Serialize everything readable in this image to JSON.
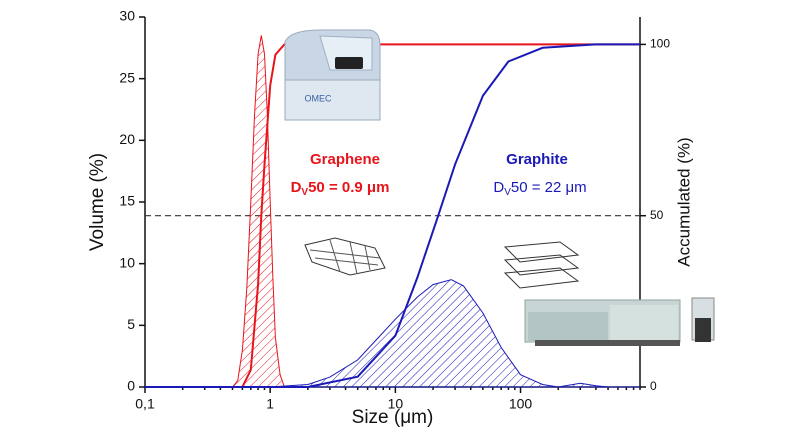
{
  "chart_data": {
    "type": "line",
    "xlabel": "Size (μm)",
    "ylabel": "Volume (%)",
    "y2label": "Accumulated (%)",
    "xscale": "log",
    "xlim": [
      0.1,
      900
    ],
    "xticks": [
      {
        "value": 0.1,
        "label": "0,1"
      },
      1,
      10,
      100
    ],
    "ylim": [
      0,
      30
    ],
    "yticks": [
      0,
      5,
      10,
      15,
      20,
      25,
      30
    ],
    "y2lim": [
      0,
      108
    ],
    "y2ticks": [
      0,
      50,
      100
    ],
    "reference_line": {
      "value": 50,
      "axis": "y2"
    },
    "series": [
      {
        "kind": "hatched-area",
        "color": "#e8141b",
        "axis": "y",
        "x": [
          0.5,
          0.55,
          0.6,
          0.65,
          0.7,
          0.75,
          0.8,
          0.85,
          0.9,
          0.95,
          1.0,
          1.05,
          1.1,
          1.2,
          1.3
        ],
        "values": [
          0,
          0.5,
          3,
          8,
          15,
          22,
          27,
          28.5,
          27,
          22,
          15,
          9,
          4,
          1,
          0
        ]
      },
      {
        "kind": "line",
        "color": "#e8141b",
        "axis": "y2",
        "x": [
          0.1,
          0.6,
          0.7,
          0.8,
          0.85,
          0.9,
          1.0,
          1.1,
          1.3,
          900
        ],
        "values": [
          0,
          0,
          5,
          30,
          50,
          65,
          88,
          97,
          100,
          100
        ]
      },
      {
        "kind": "hatched-area",
        "color": "#1a1ab8",
        "axis": "y",
        "x": [
          0.1,
          1,
          2,
          3,
          5,
          7,
          10,
          15,
          20,
          28,
          35,
          50,
          70,
          100,
          150,
          200,
          300,
          400,
          500,
          900
        ],
        "values": [
          0,
          0,
          0.2,
          0.8,
          2.2,
          3.8,
          5.5,
          7.3,
          8.3,
          8.7,
          8.2,
          6,
          3.2,
          1,
          0.2,
          0,
          0.3,
          0.1,
          0,
          0
        ]
      },
      {
        "kind": "line",
        "color": "#1a1ab8",
        "axis": "y2",
        "x": [
          0.1,
          2,
          5,
          10,
          15,
          22,
          30,
          50,
          80,
          150,
          400,
          900
        ],
        "values": [
          0,
          0,
          3,
          15,
          32,
          50,
          65,
          85,
          95,
          99,
          100,
          100
        ]
      }
    ],
    "annotations": [
      {
        "title": "Graphene",
        "label": [
          "D",
          "V",
          "50 = 0.9 μm"
        ],
        "color": "#e8141b",
        "bold": true
      },
      {
        "title": "Graphite",
        "label": [
          "D",
          "V",
          "50 = 22 μm"
        ],
        "color": "#1a1ab8",
        "bold": false
      }
    ],
    "instrument_label": "OMEC"
  }
}
